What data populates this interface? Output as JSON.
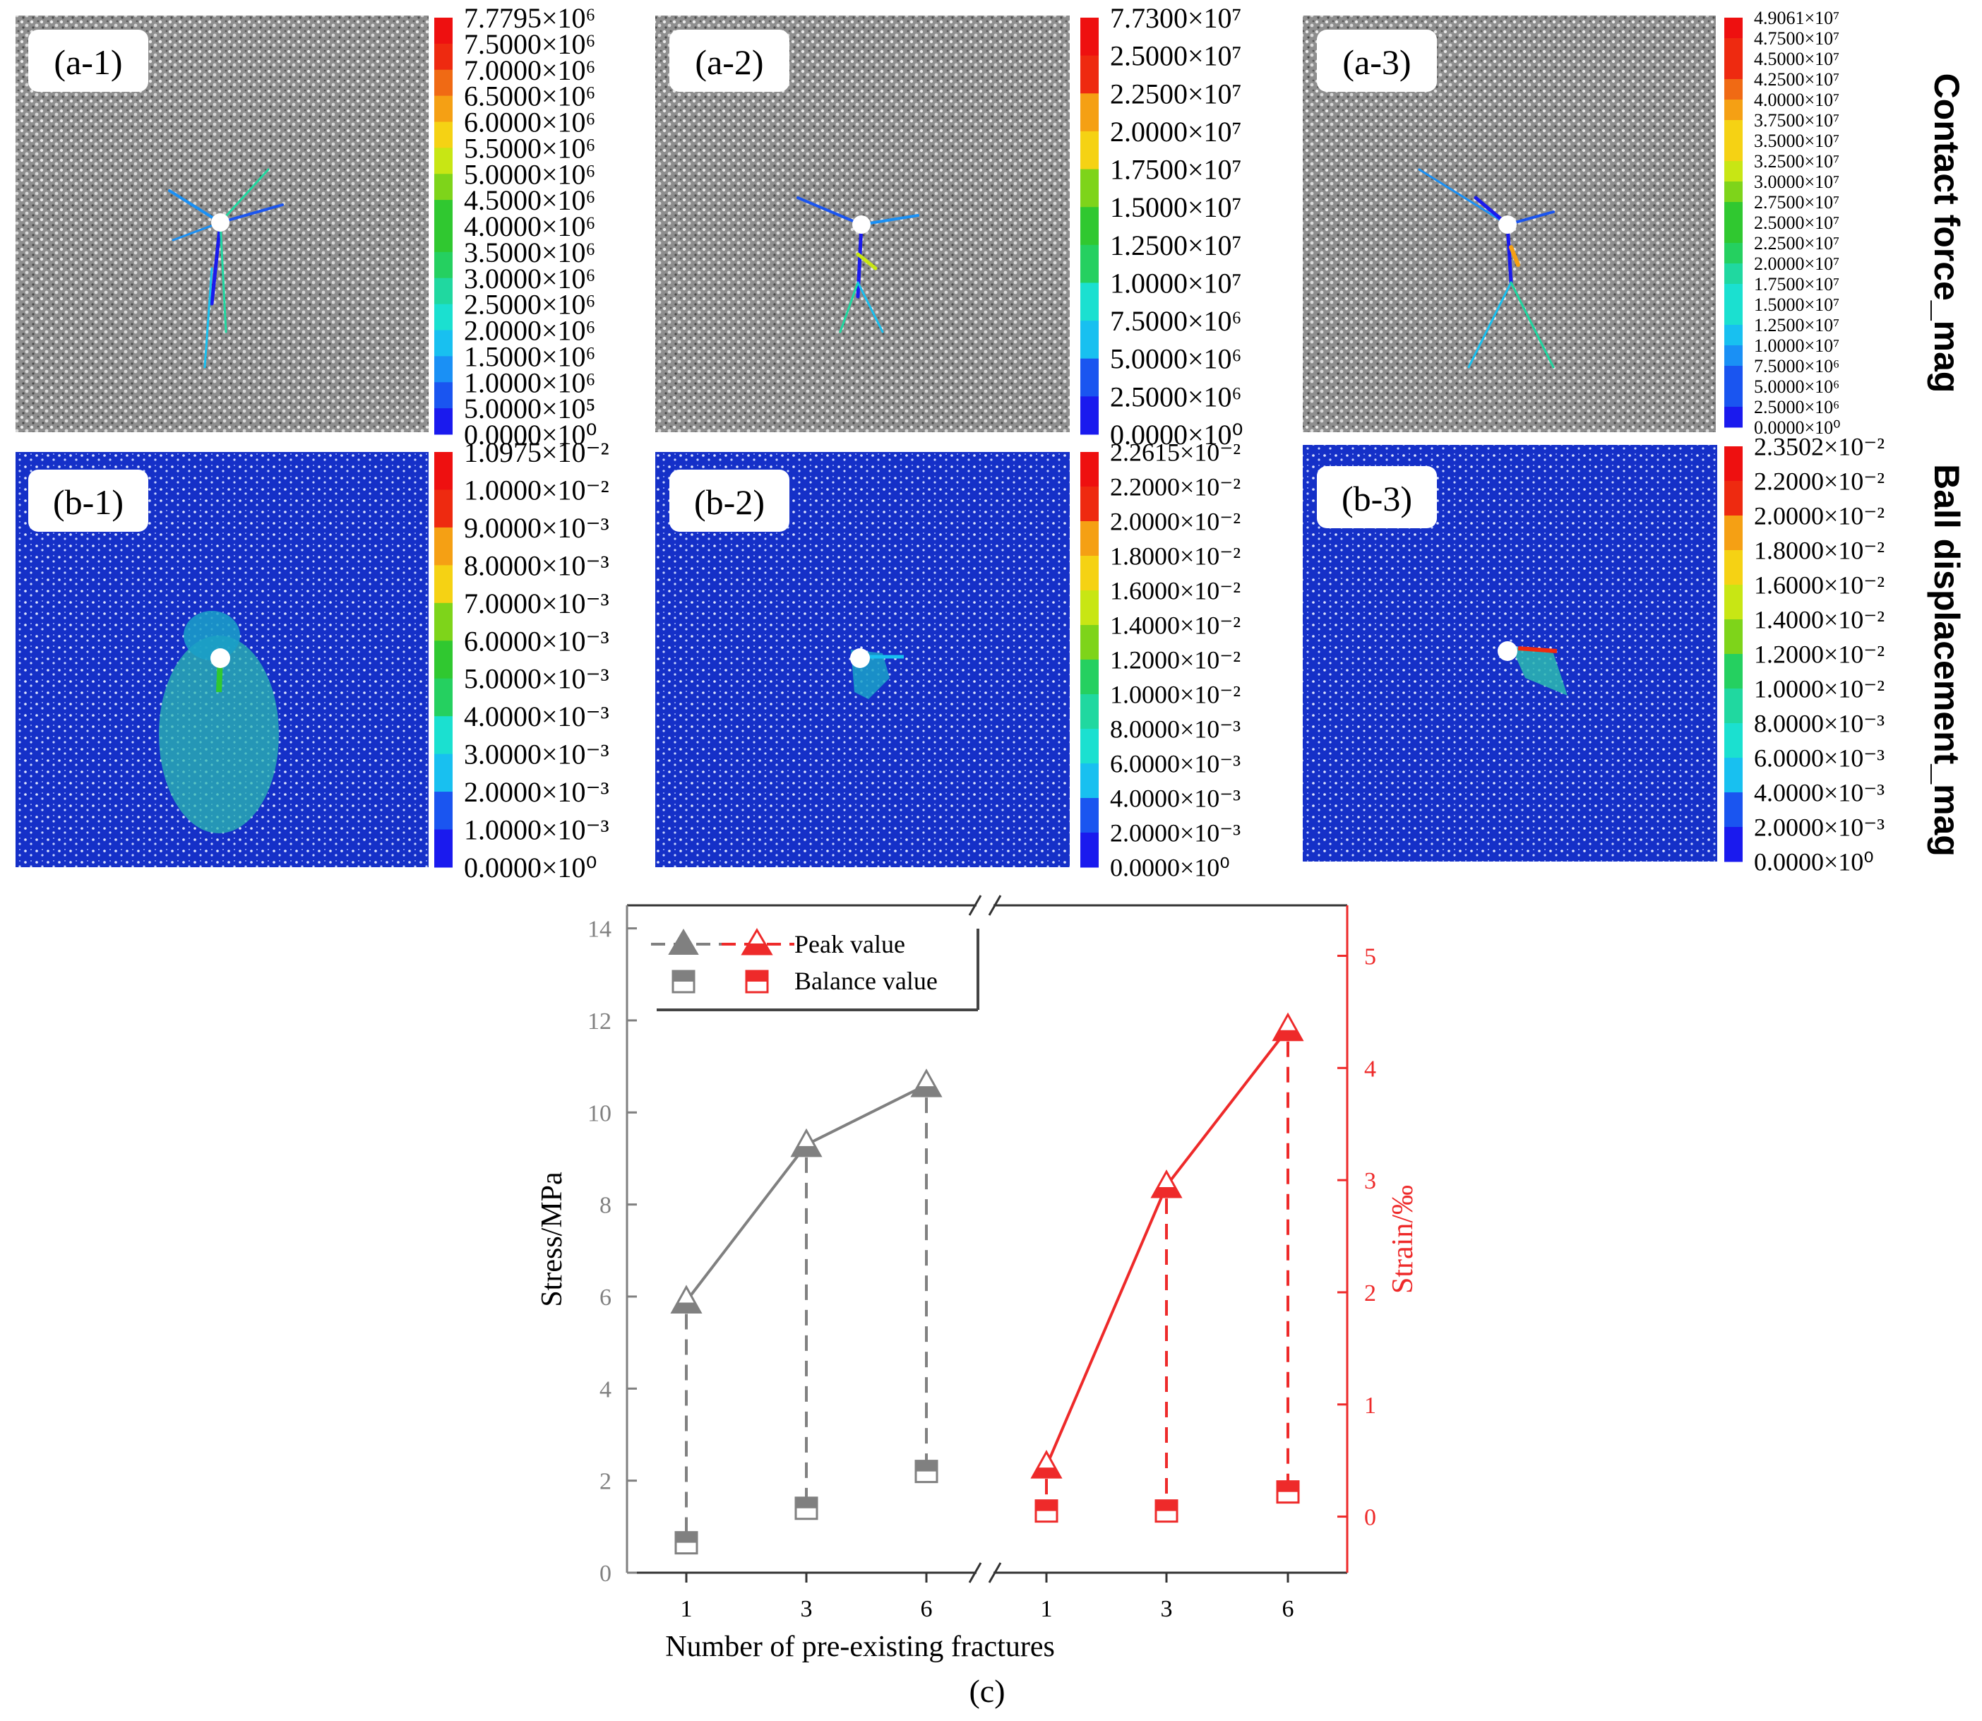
{
  "panels": [
    {
      "label": "(a-1)",
      "kind": "contact",
      "scale": [
        "7.7795×10⁶",
        "7.5000×10⁶",
        "7.0000×10⁶",
        "6.5000×10⁶",
        "6.0000×10⁶",
        "5.5000×10⁶",
        "5.0000×10⁶",
        "4.5000×10⁶",
        "4.0000×10⁶",
        "3.5000×10⁶",
        "3.0000×10⁶",
        "2.5000×10⁶",
        "2.0000×10⁶",
        "1.5000×10⁶",
        "1.0000×10⁶",
        "5.0000×10⁵",
        "0.0000×10⁰"
      ]
    },
    {
      "label": "(a-2)",
      "kind": "contact",
      "scale": [
        "7.7300×10⁷",
        "2.5000×10⁷",
        "2.2500×10⁷",
        "2.0000×10⁷",
        "1.7500×10⁷",
        "1.5000×10⁷",
        "1.2500×10⁷",
        "1.0000×10⁷",
        "7.5000×10⁶",
        "5.0000×10⁶",
        "2.5000×10⁶",
        "0.0000×10⁰"
      ]
    },
    {
      "label": "(a-3)",
      "kind": "contact",
      "scale": [
        "4.9061×10⁷",
        "4.7500×10⁷",
        "4.5000×10⁷",
        "4.2500×10⁷",
        "4.0000×10⁷",
        "3.7500×10⁷",
        "3.5000×10⁷",
        "3.2500×10⁷",
        "3.0000×10⁷",
        "2.7500×10⁷",
        "2.5000×10⁷",
        "2.2500×10⁷",
        "2.0000×10⁷",
        "1.7500×10⁷",
        "1.5000×10⁷",
        "1.2500×10⁷",
        "1.0000×10⁷",
        "7.5000×10⁶",
        "5.0000×10⁶",
        "2.5000×10⁶",
        "0.0000×10⁰"
      ]
    },
    {
      "label": "(b-1)",
      "kind": "displacement",
      "scale": [
        "1.0975×10⁻²",
        "1.0000×10⁻²",
        "9.0000×10⁻³",
        "8.0000×10⁻³",
        "7.0000×10⁻³",
        "6.0000×10⁻³",
        "5.0000×10⁻³",
        "4.0000×10⁻³",
        "3.0000×10⁻³",
        "2.0000×10⁻³",
        "1.0000×10⁻³",
        "0.0000×10⁰"
      ]
    },
    {
      "label": "(b-2)",
      "kind": "displacement",
      "scale": [
        "2.2615×10⁻²",
        "2.2000×10⁻²",
        "2.0000×10⁻²",
        "1.8000×10⁻²",
        "1.6000×10⁻²",
        "1.4000×10⁻²",
        "1.2000×10⁻²",
        "1.0000×10⁻²",
        "8.0000×10⁻³",
        "6.0000×10⁻³",
        "4.0000×10⁻³",
        "2.0000×10⁻³",
        "0.0000×10⁰"
      ]
    },
    {
      "label": "(b-3)",
      "kind": "displacement",
      "scale": [
        "2.3502×10⁻²",
        "2.2000×10⁻²",
        "2.0000×10⁻²",
        "1.8000×10⁻²",
        "1.6000×10⁻²",
        "1.4000×10⁻²",
        "1.2000×10⁻²",
        "1.0000×10⁻²",
        "8.0000×10⁻³",
        "6.0000×10⁻³",
        "4.0000×10⁻³",
        "2.0000×10⁻³",
        "0.0000×10⁰"
      ]
    }
  ],
  "row_titles": {
    "top": "Contact force_mag",
    "bottom": "Ball displacement_mag"
  },
  "colors": {
    "gray_series": "#808080",
    "red_series": "#ee2a2a",
    "particle_bg": "#9a9a9a",
    "disp_bg": "#1530c8",
    "colormap": [
      "#1a1aee",
      "#1a55f0",
      "#1a90f5",
      "#18c0f0",
      "#1be0d0",
      "#20d8a0",
      "#25d060",
      "#30c830",
      "#7ed41a",
      "#c8e614",
      "#f5d214",
      "#f5a014",
      "#f06a14",
      "#ee2a10",
      "#ee1010"
    ]
  },
  "chart_data": {
    "type": "line",
    "caption": "(c)",
    "xlabel": "Number of pre-existing fractures",
    "categories": [
      "1",
      "3",
      "6"
    ],
    "left_axis": {
      "label": "Stress/MPa",
      "ylim": [
        0,
        14.5
      ],
      "ticks": [
        "0",
        "2",
        "4",
        "6",
        "8",
        "10",
        "12",
        "14"
      ]
    },
    "right_axis": {
      "label": "Strain/‰",
      "ylim": [
        -0.5,
        5.45
      ],
      "ticks": [
        "0",
        "1",
        "2",
        "3",
        "4",
        "5"
      ]
    },
    "legend": {
      "placement": "top-left",
      "peak": "Peak value",
      "balance": "Balance value"
    },
    "series": [
      {
        "name": "Stress peak value",
        "axis": "left",
        "marker": "triangle",
        "values": [
          5.9,
          9.3,
          10.6
        ]
      },
      {
        "name": "Stress balance value",
        "axis": "left",
        "marker": "square",
        "values": [
          0.65,
          1.4,
          2.2
        ]
      },
      {
        "name": "Strain peak value",
        "axis": "right",
        "marker": "triangle",
        "values": [
          0.45,
          2.95,
          4.35
        ]
      },
      {
        "name": "Strain balance value",
        "axis": "right",
        "marker": "square",
        "values": [
          0.05,
          0.05,
          0.22
        ]
      }
    ]
  }
}
